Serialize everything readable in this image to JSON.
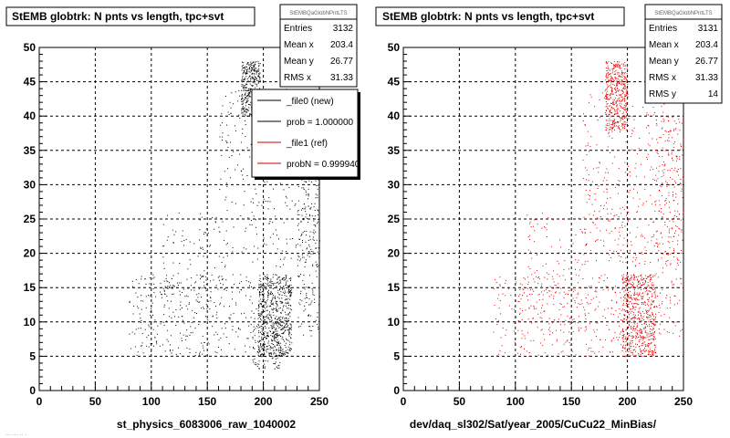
{
  "footer_text": "... ... .. .",
  "chart_data": [
    {
      "type": "scatter",
      "title": "StEMB globtrk: N pnts vs length, tpc+svt",
      "xlabel": "st_physics_6083006_raw_1040002",
      "ylabel": "",
      "xlim": [
        0,
        250
      ],
      "ylim": [
        0,
        50
      ],
      "xticks": [
        "0",
        "50",
        "100",
        "150",
        "200",
        "250"
      ],
      "yticks": [
        "0",
        "5",
        "10",
        "15",
        "20",
        "25",
        "30",
        "35",
        "40",
        "45",
        "50"
      ],
      "grid": true,
      "marker_color": "#000000",
      "stats": {
        "name": "StEMBQaGlobNPntLTS",
        "rows": [
          {
            "label": "Entries",
            "value": "3132"
          },
          {
            "label": "Mean x",
            "value": "203.4"
          },
          {
            "label": "Mean y",
            "value": "26.77"
          },
          {
            "label": "RMS x",
            "value": "31.33"
          }
        ]
      },
      "legend": {
        "placement": "top-right",
        "entries": [
          {
            "label": "_file0 (new)",
            "color": "#000000"
          },
          {
            "label": "prob = 1.000000",
            "color": "#000000"
          },
          {
            "label": "_file1 (ref)",
            "color": "#cc0000"
          },
          {
            "label": "probN = 0.999940",
            "color": "#cc0000"
          }
        ]
      },
      "clusters": [
        {
          "x": [
            180,
            197
          ],
          "y": [
            40,
            48
          ],
          "n": 400
        },
        {
          "x": [
            195,
            225
          ],
          "y": [
            5,
            17
          ],
          "n": 650
        },
        {
          "x": [
            160,
            250
          ],
          "y": [
            18,
            44
          ],
          "n": 350
        },
        {
          "x": [
            80,
            195
          ],
          "y": [
            5,
            17
          ],
          "n": 330
        },
        {
          "x": [
            230,
            250
          ],
          "y": [
            8,
            36
          ],
          "n": 200
        },
        {
          "x": [
            110,
            165
          ],
          "y": [
            12,
            26
          ],
          "n": 100
        },
        {
          "x": [
            190,
            215
          ],
          "y": [
            3,
            10
          ],
          "n": 100
        }
      ]
    },
    {
      "type": "scatter",
      "title": "StEMB globtrk: N pnts vs length, tpc+svt",
      "xlabel": "dev/daq_sl302/Sat/year_2005/CuCu22_MinBias/",
      "ylabel": "",
      "xlim": [
        0,
        250
      ],
      "ylim": [
        0,
        50
      ],
      "xticks": [
        "0",
        "50",
        "100",
        "150",
        "200",
        "250"
      ],
      "yticks": [
        "0",
        "5",
        "10",
        "15",
        "20",
        "25",
        "30",
        "35",
        "40",
        "45",
        "50"
      ],
      "grid": true,
      "marker_color": "#dd0000",
      "stats": {
        "name": "StEMBQaGlobNPntLTS",
        "rows": [
          {
            "label": "Entries",
            "value": "3131"
          },
          {
            "label": "Mean x",
            "value": "203.4"
          },
          {
            "label": "Mean y",
            "value": "26.77"
          },
          {
            "label": "RMS x",
            "value": "31.33"
          },
          {
            "label": "RMS y",
            "value": "14"
          }
        ]
      },
      "clusters": [
        {
          "x": [
            180,
            200
          ],
          "y": [
            38,
            48
          ],
          "n": 450
        },
        {
          "x": [
            195,
            225
          ],
          "y": [
            5,
            17
          ],
          "n": 650
        },
        {
          "x": [
            160,
            250
          ],
          "y": [
            18,
            44
          ],
          "n": 380
        },
        {
          "x": [
            80,
            195
          ],
          "y": [
            5,
            17
          ],
          "n": 330
        },
        {
          "x": [
            225,
            250
          ],
          "y": [
            8,
            40
          ],
          "n": 220
        },
        {
          "x": [
            110,
            165
          ],
          "y": [
            12,
            26
          ],
          "n": 100
        }
      ]
    }
  ]
}
